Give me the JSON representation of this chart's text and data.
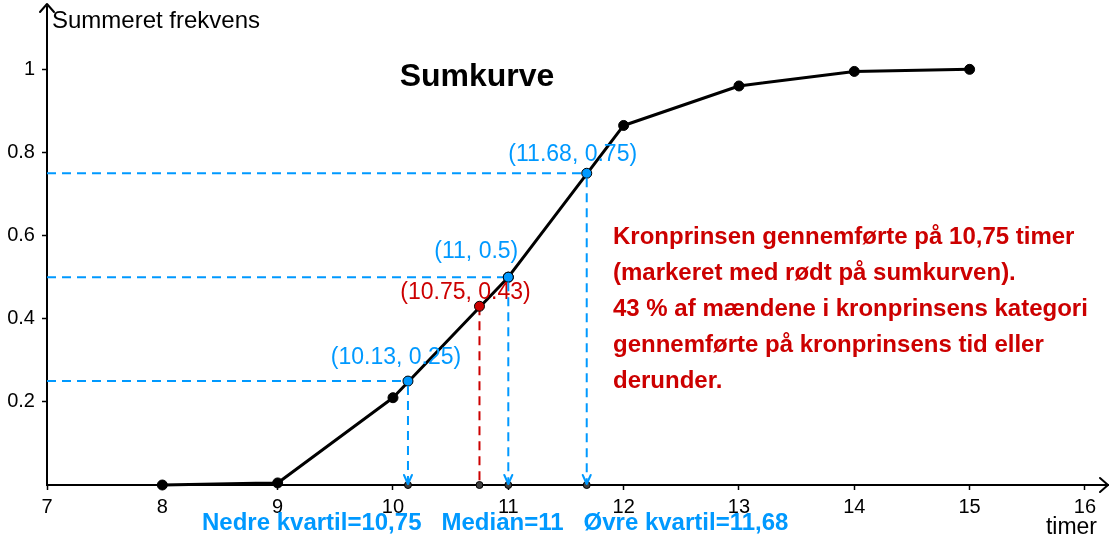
{
  "chart_data": {
    "type": "line",
    "title": "Sumkurve",
    "xlabel": "timer",
    "ylabel": "Summeret frekvens",
    "xlim": [
      7,
      16.2
    ],
    "xticks": [
      7,
      8,
      9,
      10,
      11,
      12,
      13,
      14,
      15,
      16
    ],
    "ylim": [
      0,
      1.15
    ],
    "yticks": [
      0.2,
      0.4,
      0.6,
      0.8,
      1
    ],
    "series": [
      {
        "x": [
          7,
          10.13
        ],
        "values": [
          0.25,
          0.25
        ],
        "color": "#0099ff",
        "line_style": "dashed",
        "marker": "none"
      },
      {
        "x": [
          7,
          11
        ],
        "values": [
          0.5,
          0.5
        ],
        "color": "#0099ff",
        "line_style": "dashed",
        "marker": "none"
      },
      {
        "x": [
          7,
          11.68
        ],
        "values": [
          0.75,
          0.75
        ],
        "color": "#0099ff",
        "line_style": "dashed",
        "marker": "none"
      },
      {
        "x": [
          10.75,
          10.75
        ],
        "values": [
          0.43,
          0
        ],
        "color": "#cc0000",
        "line_style": "dashed",
        "marker": "none"
      },
      {
        "x": [
          8,
          9,
          10,
          11,
          12,
          13,
          14,
          15
        ],
        "values": [
          0,
          0.005,
          0.21,
          0.5,
          0.865,
          0.96,
          0.995,
          1
        ],
        "color": "#000000",
        "marker": "circle"
      },
      {
        "type": "scatter",
        "x": [
          10.13,
          10.75,
          11,
          11.68
        ],
        "values": [
          0,
          0,
          0,
          0
        ],
        "color": "#404040",
        "marker": "circle"
      },
      {
        "type": "scatter",
        "x": [
          10.13,
          11,
          11.68
        ],
        "values": [
          0.25,
          0.5,
          0.75
        ],
        "color": "#0099ff",
        "value_labels": [
          "(10.13, 0.25)",
          "(11, 0.5)",
          "(11.68, 0.75)"
        ]
      },
      {
        "type": "scatter",
        "x": [
          10.75
        ],
        "values": [
          0.43
        ],
        "color": "#cc0000",
        "value_labels": [
          "(10.75, 0.43)"
        ]
      }
    ],
    "annotations": [
      "Kronprinsen gennemførte på 10,75 timer (markeret med rødt på sumkurven).",
      "43 % af mændene i kronprinsens kategori gennemførte på kronprinsens tid eller derunder.",
      {
        "text": "Nedre kvartil=10,75",
        "x": 10.13,
        "y": 0
      },
      {
        "text": "Median=11",
        "x": 11,
        "y": 0
      },
      {
        "text": "Øvre kvartil=11,68",
        "x": 11.68,
        "y": 0
      }
    ]
  }
}
